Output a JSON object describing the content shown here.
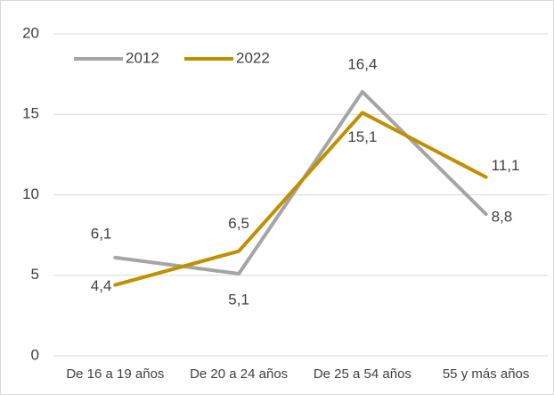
{
  "chart_data": {
    "type": "line",
    "categories": [
      "De 16 a 19 años",
      "De 20 a 24 años",
      "De 25 a 54 años",
      "55 y más años"
    ],
    "series": [
      {
        "name": "2012",
        "color": "#a5a5a5",
        "values": [
          6.1,
          5.1,
          16.4,
          8.8
        ],
        "value_labels": [
          "6,1",
          "5,1",
          "16,4",
          "8,8"
        ]
      },
      {
        "name": "2022",
        "color": "#bf9000",
        "values": [
          4.4,
          6.5,
          15.1,
          11.1
        ],
        "value_labels": [
          "4,4",
          "6,5",
          "15,1",
          "11,1"
        ]
      }
    ],
    "ylim": [
      0,
      20
    ],
    "yticks": [
      0,
      5,
      10,
      15,
      20
    ],
    "grid": true,
    "legend": "top-left"
  }
}
